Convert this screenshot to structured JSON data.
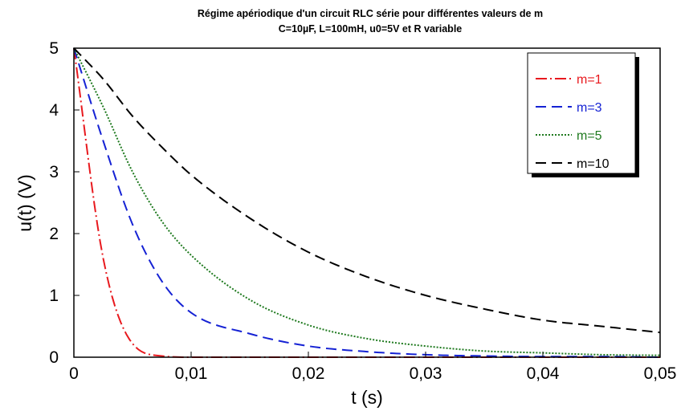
{
  "chart_data": {
    "type": "line",
    "title": "Régime apériodique d'un circuit RLC série pour différentes valeurs de m",
    "subtitle": "C=10µF, L=100mH, u0=5V et R variable",
    "xlabel": "t (s)",
    "ylabel": "u(t) (V)",
    "xlim": [
      0,
      0.05
    ],
    "ylim": [
      0,
      5
    ],
    "x_ticks": [
      0,
      0.01,
      0.02,
      0.03,
      0.04,
      0.05
    ],
    "x_tick_labels": [
      "0",
      "0,01",
      "0,02",
      "0,03",
      "0,04",
      "0,05"
    ],
    "y_ticks": [
      0,
      1,
      2,
      3,
      4,
      5
    ],
    "y_tick_labels": [
      "0",
      "1",
      "2",
      "3",
      "4",
      "5"
    ],
    "grid": false,
    "legend_position": "top-right",
    "x": [
      0,
      0.0025,
      0.005,
      0.0075,
      0.01,
      0.015,
      0.02,
      0.025,
      0.03,
      0.035,
      0.04,
      0.045,
      0.05
    ],
    "series": [
      {
        "name": "m=1",
        "color": "#e8191e",
        "dash": "long-dot",
        "values": [
          5.0,
          1.6,
          0.22,
          0.02,
          0.0,
          0.0,
          0.0,
          0.0,
          0.0,
          0.0,
          0.0,
          0.0,
          0.0
        ]
      },
      {
        "name": "m=3",
        "color": "#1522d4",
        "dash": "dashed",
        "values": [
          5.0,
          3.5,
          2.15,
          1.23,
          0.72,
          0.38,
          0.18,
          0.09,
          0.04,
          0.02,
          0.01,
          0.01,
          0.0
        ]
      },
      {
        "name": "m=5",
        "color": "#1f7a1f",
        "dash": "dotted",
        "values": [
          5.0,
          4.05,
          3.0,
          2.2,
          1.65,
          0.93,
          0.52,
          0.3,
          0.18,
          0.1,
          0.07,
          0.04,
          0.03
        ]
      },
      {
        "name": "m=10",
        "color": "#000000",
        "dash": "dashed",
        "values": [
          5.0,
          4.5,
          3.9,
          3.4,
          2.95,
          2.25,
          1.7,
          1.3,
          1.0,
          0.78,
          0.6,
          0.5,
          0.4
        ]
      }
    ]
  }
}
